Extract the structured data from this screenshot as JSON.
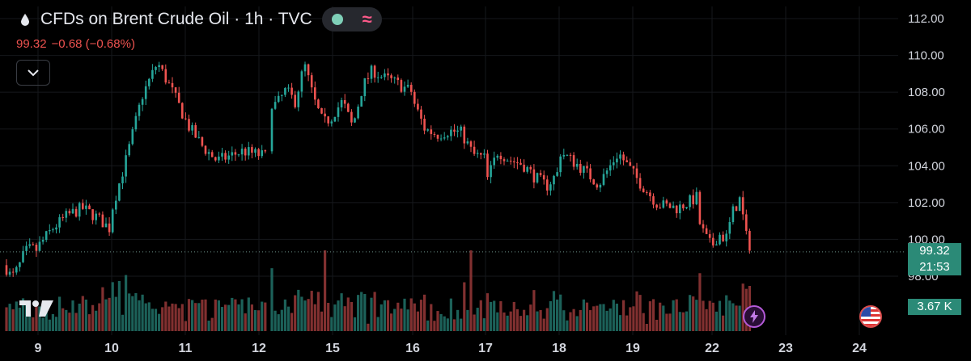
{
  "header": {
    "title": "CFDs on Brent Crude Oil · 1h · TVC",
    "price": "99.32",
    "change": "−0.68 (−0.68%)"
  },
  "tags": {
    "last_price": "99.32",
    "countdown": "21:53",
    "volume": "3.67 K"
  },
  "colors": {
    "up": "#26a69a",
    "down": "#ef5350",
    "grid": "#16181c",
    "text": "#d1d4dc",
    "tag": "#2b8a77"
  },
  "icons": [
    "drop-icon",
    "chevron-down-icon",
    "lightning-icon",
    "us-flag-icon",
    "tradingview-logo-icon"
  ],
  "chart_data": {
    "type": "candlestick",
    "y_ticks": [
      "112.00",
      "110.00",
      "108.00",
      "106.00",
      "104.00",
      "102.00",
      "100.00",
      "98.00"
    ],
    "x_ticks": [
      "9",
      "10",
      "11",
      "12",
      "15",
      "16",
      "17",
      "18",
      "19",
      "22",
      "23",
      "24"
    ],
    "ylim": [
      96.5,
      112.7
    ],
    "last_price": 99.32,
    "grid": true,
    "series": [
      {
        "date": "9",
        "values": [
          98.6,
          97.9,
          98.4,
          99.3,
          99.5,
          99.4
        ]
      },
      {
        "date": "10",
        "values": [
          99.6,
          100.6,
          101.3,
          101.7,
          101.2,
          100.5
        ]
      },
      {
        "date": "11",
        "values": [
          101.6,
          104.5,
          107.8,
          109.6,
          108.0,
          106.2,
          105.0,
          104.2
        ]
      },
      {
        "date": "12",
        "values": [
          104.3,
          104.8,
          104.5
        ]
      },
      {
        "date": "15",
        "values": [
          107.6,
          107.3,
          108.1,
          107.5,
          109.5,
          107.6,
          106.3,
          106.7
        ]
      },
      {
        "date": "16",
        "values": [
          106.8,
          107.5,
          106.1,
          108.3,
          109.2,
          108.8,
          108.6,
          108.3,
          108.0
        ]
      },
      {
        "date": "17",
        "values": [
          107.6,
          106.0,
          105.7,
          105.9,
          105.8,
          104.6,
          104.4
        ]
      },
      {
        "date": "18",
        "values": [
          103.0,
          104.8,
          104.3,
          104.1,
          103.4,
          102.9,
          103.7
        ]
      },
      {
        "date": "19",
        "values": [
          104.8,
          104.0,
          103.0,
          104.7,
          103.2,
          101.9,
          101.7,
          102.3
        ]
      },
      {
        "date": "22",
        "values": [
          101.2,
          100.2,
          99.6,
          100.3,
          100.0,
          101.5,
          102.2,
          99.9,
          99.32
        ]
      }
    ]
  }
}
